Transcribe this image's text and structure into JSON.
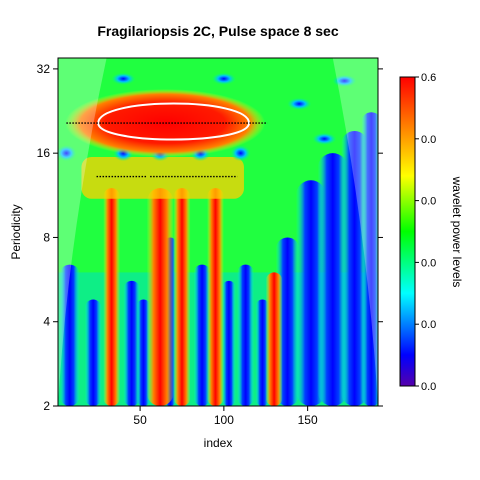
{
  "chart_data": {
    "type": "heatmap",
    "title": "Fragilariopsis 2C, Pulse space 8 sec",
    "xlabel": "index",
    "ylabel": "Periodicity",
    "xlim": [
      1,
      192
    ],
    "ylim": [
      2,
      35
    ],
    "y_scale": "log2",
    "x_ticks": [
      50,
      100,
      150
    ],
    "y_ticks": [
      2,
      4,
      8,
      16,
      32
    ],
    "colorbar": {
      "label": "wavelet power levels",
      "tick_labels": [
        "0.0",
        "0.0",
        "0.0",
        "0.0",
        "0.0",
        "0.6"
      ],
      "colors": [
        "#5500aa",
        "#0000ff",
        "#00ffff",
        "#00ff00",
        "#ffff00",
        "#ff8000",
        "#ff0000"
      ],
      "placement": "right"
    },
    "ridges": [
      {
        "period": 20.5,
        "x": [
          6,
          126
        ]
      },
      {
        "period": 13.2,
        "x": [
          24,
          54
        ]
      },
      {
        "period": 13.2,
        "x": [
          56,
          108
        ]
      }
    ],
    "significance_region": {
      "period": 20.5,
      "x": [
        25,
        115
      ]
    },
    "hot_columns": [
      {
        "x": 33,
        "period_range": [
          2,
          12
        ]
      },
      {
        "x": 62,
        "period_range": [
          2,
          12
        ]
      },
      {
        "x": 75,
        "period_range": [
          2,
          12
        ]
      },
      {
        "x": 95,
        "period_range": [
          2,
          12
        ]
      },
      {
        "x": 130,
        "period_range": [
          2,
          6
        ]
      }
    ]
  }
}
